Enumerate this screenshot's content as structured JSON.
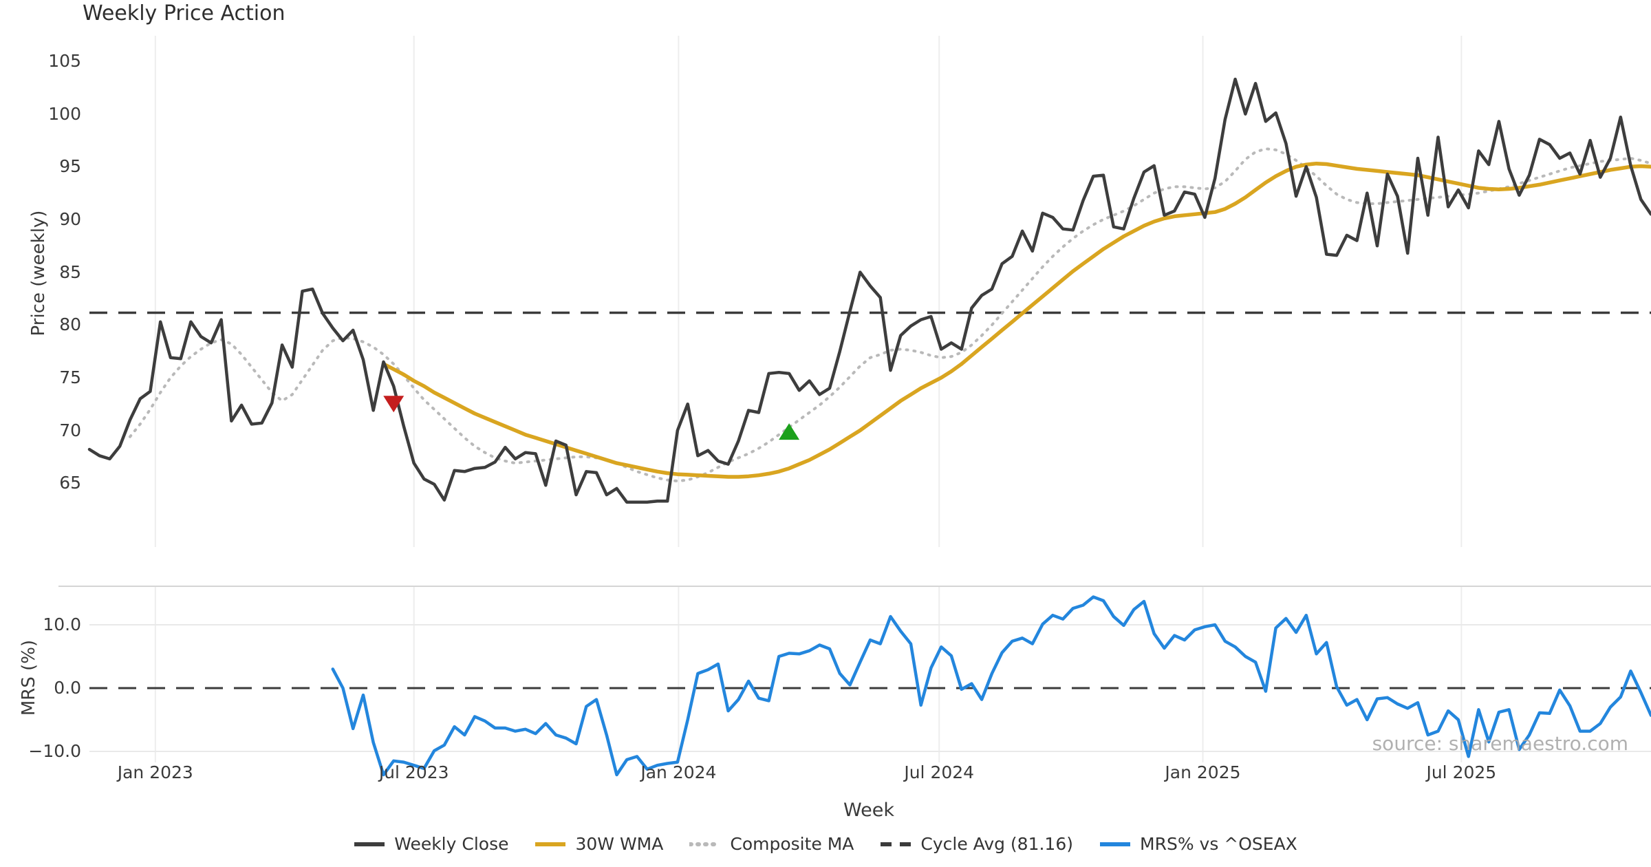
{
  "title": "Weekly Price Action",
  "watermark": "source: sharemaestro.com",
  "axes": {
    "price_label": "Price (weekly)",
    "mrs_label": "MRS (%)",
    "x_label": "Week",
    "price_ticks": [
      105,
      100,
      95,
      90,
      85,
      80,
      75,
      70,
      65
    ],
    "mrs_ticks": [
      {
        "label": "10.0",
        "value": 10
      },
      {
        "label": "0.0",
        "value": 0
      },
      {
        "label": "−10.0",
        "value": -10
      }
    ],
    "x_ticks": [
      "Jan 2023",
      "Jul 2023",
      "Jan 2024",
      "Jul 2024",
      "Jan 2025",
      "Jul 2025"
    ]
  },
  "legend": [
    {
      "label": "Weekly Close",
      "color": "#3d3d3d",
      "style": "solid"
    },
    {
      "label": "30W WMA",
      "color": "#d9a520",
      "style": "solid"
    },
    {
      "label": "Composite MA",
      "color": "#b9b9b9",
      "style": "dotted"
    },
    {
      "label": "Cycle Avg (81.16)",
      "color": "#3b3b3b",
      "style": "dashed"
    },
    {
      "label": "MRS% vs ^OSEAX",
      "color": "#2386dd",
      "style": "solid"
    }
  ],
  "colors": {
    "close": "#3d3d3d",
    "wma": "#d9a520",
    "composite": "#b9b9b9",
    "cycle_avg": "#3b3b3b",
    "mrs": "#2386dd",
    "sell_marker": "#c41e1e",
    "buy_marker": "#1ca01c",
    "grid": "#ededed",
    "mrs_grid": "#e9e9e9",
    "mrs_top_spine": "#d5d5d5",
    "text": "#3a3a3a"
  },
  "chart_data": {
    "type": "line",
    "title": "Weekly Price Action",
    "xlabel": "Week",
    "ylabel_top": "Price (weekly)",
    "ylabel_bottom": "MRS (%)",
    "x_start": "2022-11-14",
    "x_step_weeks": 1,
    "n_points": 155,
    "price_ylim": [
      62,
      106
    ],
    "mrs_ylim": [
      -15,
      16
    ],
    "cycle_avg": 81.16,
    "grid": "vertical-light",
    "legend_position": "bottom-center",
    "x_tick_positions_weeks": [
      6.5,
      32.0,
      58.1,
      83.8,
      109.8,
      135.3
    ],
    "series": [
      {
        "name": "Weekly Close",
        "type": "solid",
        "values": [
          68.2,
          67.6,
          67.3,
          68.5,
          71.0,
          73.0,
          73.7,
          80.3,
          76.9,
          76.8,
          80.3,
          78.9,
          78.3,
          80.5,
          70.9,
          72.4,
          70.6,
          70.7,
          72.6,
          78.1,
          76.0,
          83.2,
          83.4,
          81.1,
          79.7,
          78.5,
          79.5,
          76.7,
          71.9,
          76.5,
          74.2,
          70.4,
          66.9,
          65.4,
          64.9,
          63.4,
          66.2,
          66.1,
          66.4,
          66.5,
          67.0,
          68.4,
          67.3,
          67.9,
          67.8,
          64.8,
          69.0,
          68.6,
          63.9,
          66.1,
          66.0,
          63.9,
          64.5,
          63.2,
          63.2,
          63.2,
          63.3,
          63.3,
          70.0,
          72.5,
          67.6,
          68.1,
          67.1,
          66.8,
          69.0,
          71.9,
          71.7,
          75.4,
          75.5,
          75.4,
          73.8,
          74.7,
          73.4,
          74.0,
          77.5,
          81.3,
          85.0,
          83.7,
          82.6,
          75.7,
          79.0,
          79.9,
          80.5,
          80.8,
          77.7,
          78.3,
          77.7,
          81.6,
          82.8,
          83.4,
          85.8,
          86.5,
          88.9,
          87.0,
          90.6,
          90.2,
          89.1,
          89.0,
          91.8,
          94.1,
          94.2,
          89.3,
          89.1,
          92.0,
          94.5,
          95.1,
          90.4,
          90.8,
          92.6,
          92.4,
          90.2,
          93.9,
          99.5,
          103.3,
          100.0,
          102.9,
          99.3,
          100.1,
          97.2,
          92.2,
          95.0,
          92.1,
          86.7,
          86.6,
          88.5,
          88.0,
          92.5,
          87.5,
          94.3,
          92.2,
          86.8,
          95.8,
          90.4,
          97.8,
          91.2,
          92.8,
          91.1,
          96.5,
          95.2,
          99.3,
          94.8,
          92.3,
          94.2,
          97.6,
          97.1,
          95.8,
          96.3,
          94.3,
          97.5,
          94.0,
          95.8,
          99.7,
          95.1,
          91.9,
          90.5
        ]
      },
      {
        "name": "30W WMA",
        "type": "solid",
        "values": [
          null,
          null,
          null,
          null,
          null,
          null,
          null,
          null,
          null,
          null,
          null,
          null,
          null,
          null,
          null,
          null,
          null,
          null,
          null,
          null,
          null,
          null,
          null,
          null,
          null,
          null,
          null,
          null,
          null,
          76.3,
          75.8,
          75.3,
          74.7,
          74.2,
          73.6,
          73.1,
          72.6,
          72.1,
          71.6,
          71.2,
          70.8,
          70.4,
          70.0,
          69.6,
          69.3,
          69.0,
          68.7,
          68.4,
          68.1,
          67.8,
          67.5,
          67.2,
          66.9,
          66.7,
          66.5,
          66.3,
          66.1,
          65.95,
          65.85,
          65.8,
          65.75,
          65.7,
          65.65,
          65.6,
          65.6,
          65.65,
          65.75,
          65.9,
          66.1,
          66.4,
          66.8,
          67.2,
          67.7,
          68.2,
          68.8,
          69.4,
          70.0,
          70.7,
          71.4,
          72.1,
          72.8,
          73.4,
          74.0,
          74.5,
          75.0,
          75.6,
          76.3,
          77.1,
          77.9,
          78.7,
          79.5,
          80.3,
          81.1,
          81.9,
          82.7,
          83.5,
          84.3,
          85.1,
          85.8,
          86.5,
          87.2,
          87.8,
          88.4,
          88.9,
          89.4,
          89.8,
          90.1,
          90.3,
          90.4,
          90.5,
          90.6,
          90.7,
          91.0,
          91.5,
          92.1,
          92.8,
          93.5,
          94.1,
          94.6,
          95.0,
          95.2,
          95.3,
          95.25,
          95.1,
          94.95,
          94.8,
          94.7,
          94.6,
          94.5,
          94.4,
          94.3,
          94.2,
          94.0,
          93.8,
          93.6,
          93.4,
          93.2,
          93.0,
          92.9,
          92.85,
          92.9,
          93.0,
          93.15,
          93.3,
          93.5,
          93.7,
          93.9,
          94.1,
          94.3,
          94.5,
          94.7,
          94.85,
          95.0,
          95.05,
          95.0
        ]
      },
      {
        "name": "Composite MA",
        "type": "dotted",
        "values": [
          null,
          null,
          null,
          null,
          69.4,
          70.6,
          72.0,
          73.6,
          75.0,
          76.1,
          77.0,
          77.7,
          78.3,
          78.6,
          78.2,
          77.2,
          76.0,
          74.8,
          73.6,
          72.8,
          73.4,
          74.8,
          76.2,
          77.6,
          78.5,
          78.8,
          78.7,
          78.4,
          77.9,
          77.2,
          76.3,
          75.2,
          74.0,
          72.9,
          72.0,
          71.1,
          70.2,
          69.3,
          68.5,
          67.9,
          67.4,
          67.1,
          66.9,
          67.0,
          67.1,
          67.2,
          67.3,
          67.4,
          67.5,
          67.5,
          67.4,
          67.2,
          66.9,
          66.5,
          66.1,
          65.8,
          65.5,
          65.3,
          65.2,
          65.3,
          65.6,
          66.0,
          66.5,
          67.0,
          67.4,
          67.8,
          68.3,
          68.9,
          69.6,
          70.3,
          71.0,
          71.7,
          72.4,
          73.2,
          74.1,
          75.1,
          76.1,
          76.9,
          77.2,
          77.6,
          77.7,
          77.6,
          77.4,
          77.1,
          76.9,
          77.0,
          77.4,
          78.1,
          79.0,
          80.0,
          81.1,
          82.2,
          83.3,
          84.4,
          85.5,
          86.5,
          87.4,
          88.2,
          88.9,
          89.5,
          90.0,
          90.4,
          90.8,
          91.3,
          91.9,
          92.5,
          92.9,
          93.1,
          93.1,
          93.0,
          92.9,
          93.0,
          93.6,
          94.6,
          95.7,
          96.4,
          96.7,
          96.6,
          96.2,
          95.6,
          94.9,
          94.1,
          93.2,
          92.4,
          91.9,
          91.6,
          91.5,
          91.5,
          91.6,
          91.7,
          91.8,
          91.9,
          92.0,
          92.1,
          92.2,
          92.3,
          92.4,
          92.5,
          92.7,
          92.9,
          93.1,
          93.4,
          93.7,
          94.0,
          94.3,
          94.6,
          94.9,
          95.1,
          95.3,
          95.5,
          95.6,
          95.7,
          95.8,
          95.6,
          95.3
        ]
      },
      {
        "name": "MRS% vs ^OSEAX",
        "type": "solid",
        "panel": "mrs",
        "values": [
          null,
          null,
          null,
          null,
          null,
          null,
          null,
          null,
          null,
          null,
          null,
          null,
          null,
          null,
          null,
          null,
          null,
          null,
          null,
          null,
          null,
          null,
          null,
          null,
          3.0,
          0.0,
          -6.4,
          -1.1,
          -8.6,
          -13.7,
          -11.5,
          -11.7,
          -12.2,
          -12.7,
          -9.9,
          -9.0,
          -6.1,
          -7.4,
          -4.5,
          -5.2,
          -6.3,
          -6.3,
          -6.8,
          -6.5,
          -7.2,
          -5.6,
          -7.4,
          -7.9,
          -8.8,
          -2.9,
          -1.8,
          -7.4,
          -13.7,
          -11.3,
          -10.8,
          -12.8,
          -12.2,
          -11.9,
          -11.7,
          -5.0,
          2.3,
          2.9,
          3.8,
          -3.6,
          -1.8,
          1.1,
          -1.6,
          -2.0,
          5.0,
          5.5,
          5.4,
          5.9,
          6.8,
          6.2,
          2.3,
          0.5,
          4.1,
          7.6,
          7.0,
          11.3,
          9.0,
          7.0,
          -2.7,
          3.2,
          6.5,
          5.1,
          -0.2,
          0.7,
          -1.8,
          2.3,
          5.6,
          7.4,
          7.9,
          7.0,
          10.1,
          11.5,
          10.9,
          12.6,
          13.1,
          14.4,
          13.8,
          11.3,
          9.9,
          12.4,
          13.7,
          8.6,
          6.3,
          8.3,
          7.6,
          9.2,
          9.7,
          10.0,
          7.4,
          6.5,
          5.0,
          4.1,
          -0.5,
          9.5,
          11.0,
          8.8,
          11.5,
          5.4,
          7.2,
          0.2,
          -2.7,
          -1.8,
          -5.0,
          -1.7,
          -1.5,
          -2.5,
          -3.2,
          -2.3,
          -7.4,
          -6.8,
          -3.6,
          -5.0,
          -10.8,
          -3.4,
          -8.5,
          -3.8,
          -3.4,
          -9.7,
          -7.4,
          -3.9,
          -4.0,
          -0.3,
          -2.8,
          -6.8,
          -6.8,
          -5.6,
          -3.0,
          -1.4,
          2.7,
          -0.7,
          -4.3
        ]
      }
    ],
    "markers": [
      {
        "kind": "sell",
        "shape": "triangle-down",
        "week_index": 30,
        "value": 72.5
      },
      {
        "kind": "buy",
        "shape": "triangle-up",
        "week_index": 69,
        "value": 69.9
      }
    ]
  }
}
